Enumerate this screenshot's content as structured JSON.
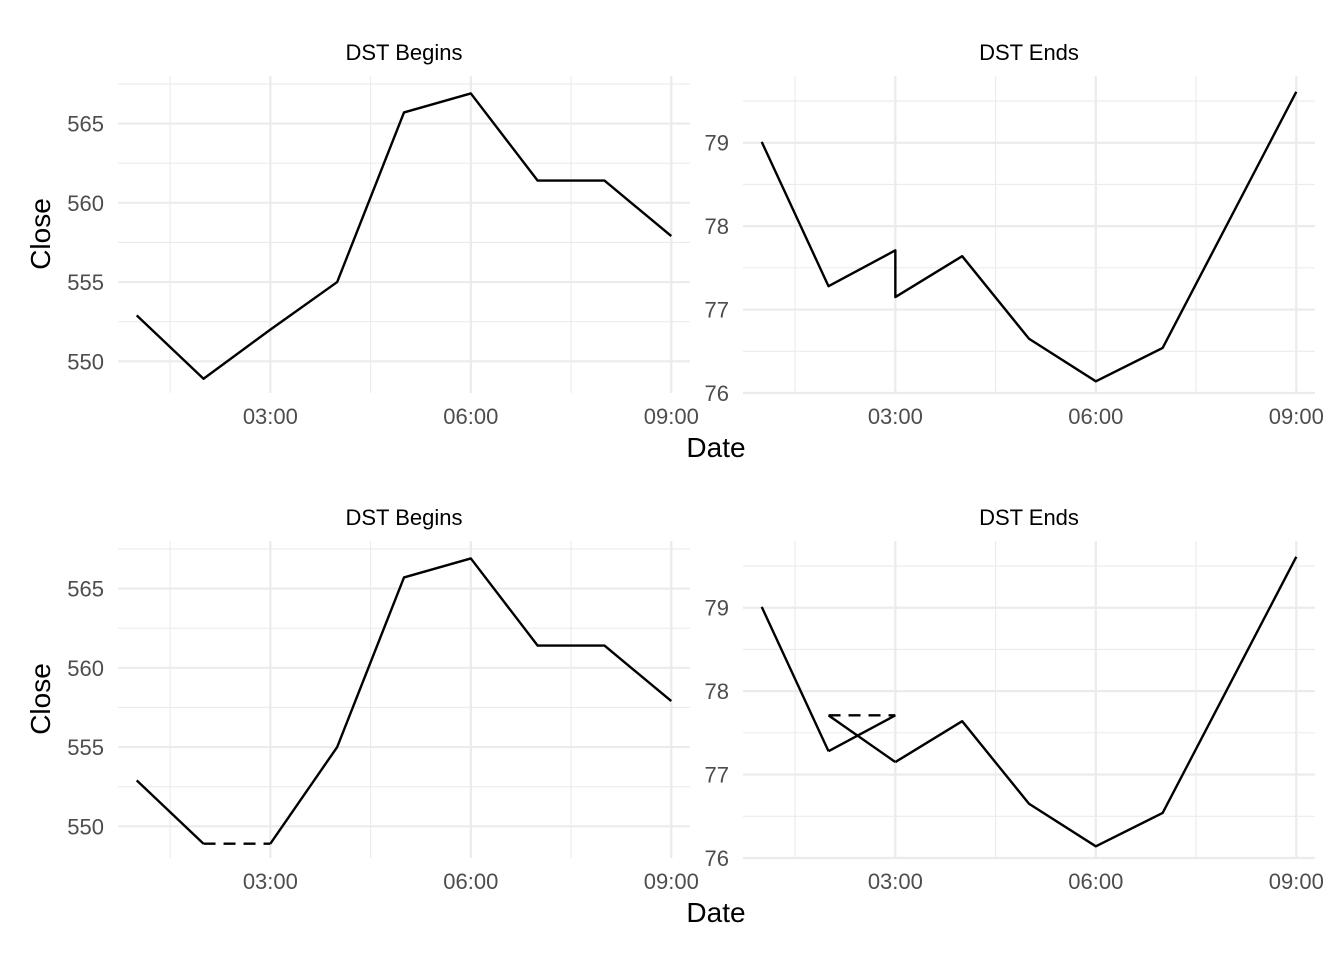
{
  "chart_data": [
    {
      "type": "line",
      "title": "DST Begins",
      "xlabel": "Date",
      "ylabel": "Close",
      "x": [
        "01:00",
        "02:00",
        "03:00",
        "04:00",
        "05:00",
        "06:00",
        "07:00",
        "08:00",
        "09:00"
      ],
      "y": [
        552.9,
        548.9,
        552.0,
        555.0,
        565.7,
        566.9,
        561.4,
        561.4,
        557.9
      ],
      "xticks": [
        "03:00",
        "06:00",
        "09:00"
      ],
      "yticks": [
        550,
        555,
        560,
        565
      ],
      "ylim": [
        548,
        568
      ],
      "grid": true
    },
    {
      "type": "line",
      "title": "DST Ends",
      "xlabel": "Date",
      "ylabel": "",
      "x": [
        "01:00",
        "02:00",
        "03:00",
        "03:00",
        "04:00",
        "05:00",
        "06:00",
        "07:00",
        "09:00"
      ],
      "y": [
        79.01,
        77.28,
        77.71,
        77.15,
        77.64,
        76.65,
        76.14,
        76.54,
        79.61
      ],
      "xticks": [
        "03:00",
        "06:00",
        "09:00"
      ],
      "yticks": [
        76,
        77,
        78,
        79
      ],
      "ylim": [
        76,
        79.8
      ],
      "grid": true
    },
    {
      "type": "line",
      "title": "DST Begins",
      "xlabel": "Date",
      "ylabel": "Close",
      "x": [
        "01:00",
        "02:00",
        "03:00",
        "04:00",
        "05:00",
        "06:00",
        "07:00",
        "08:00",
        "09:00"
      ],
      "y": [
        552.9,
        548.9,
        548.9,
        555.0,
        565.7,
        566.9,
        561.4,
        561.4,
        557.9
      ],
      "gap_segments": [
        {
          "from": "02:00",
          "to": "03:00",
          "y": 548.9
        }
      ],
      "xticks": [
        "03:00",
        "06:00",
        "09:00"
      ],
      "yticks": [
        550,
        555,
        560,
        565
      ],
      "ylim": [
        548,
        568
      ],
      "grid": true
    },
    {
      "type": "line",
      "title": "DST Ends",
      "xlabel": "Date",
      "ylabel": "",
      "x": [
        "01:00",
        "02:00",
        "03:00",
        "04:00",
        "05:00",
        "06:00",
        "07:00",
        "09:00"
      ],
      "y": [
        79.01,
        77.28,
        77.15,
        77.64,
        76.65,
        76.14,
        76.54,
        79.61
      ],
      "extra_segments": [
        {
          "from": "02:00",
          "to": "03:00",
          "y_from": 77.71,
          "y_to": 77.71,
          "style": "dashed"
        },
        {
          "from": "02:00",
          "to": "03:00",
          "y_from": 77.71,
          "y_to": 77.15,
          "style": "solid"
        }
      ],
      "xticks": [
        "03:00",
        "06:00",
        "09:00"
      ],
      "yticks": [
        76,
        77,
        78,
        79
      ],
      "ylim": [
        76,
        79.8
      ],
      "grid": true
    }
  ],
  "xlabel": "Date",
  "ylabel": "Close"
}
